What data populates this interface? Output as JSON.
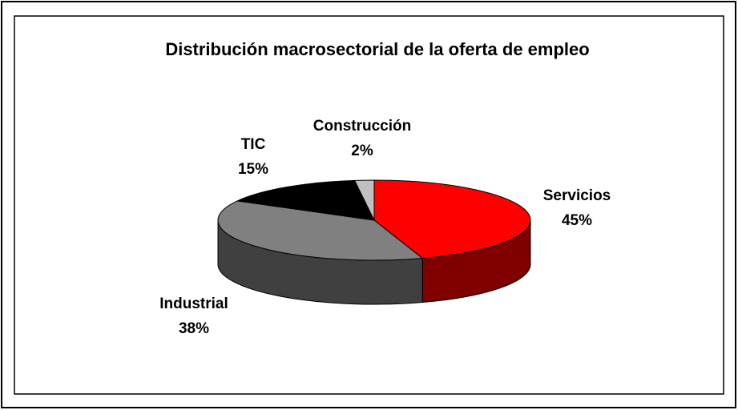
{
  "chart_data": {
    "type": "pie3d",
    "title": "Distribución macrosectorial de la oferta de empleo",
    "categories": [
      "Servicios",
      "Industrial",
      "TIC",
      "Construcción"
    ],
    "values": [
      45,
      38,
      15,
      2
    ],
    "value_labels": [
      "45%",
      "38%",
      "15%",
      "2%"
    ],
    "colors": [
      "#ff0000",
      "#808080",
      "#000000",
      "#c0c0c0"
    ],
    "side_colors": [
      "#800000",
      "#404040",
      "#000000",
      "#808080"
    ]
  }
}
